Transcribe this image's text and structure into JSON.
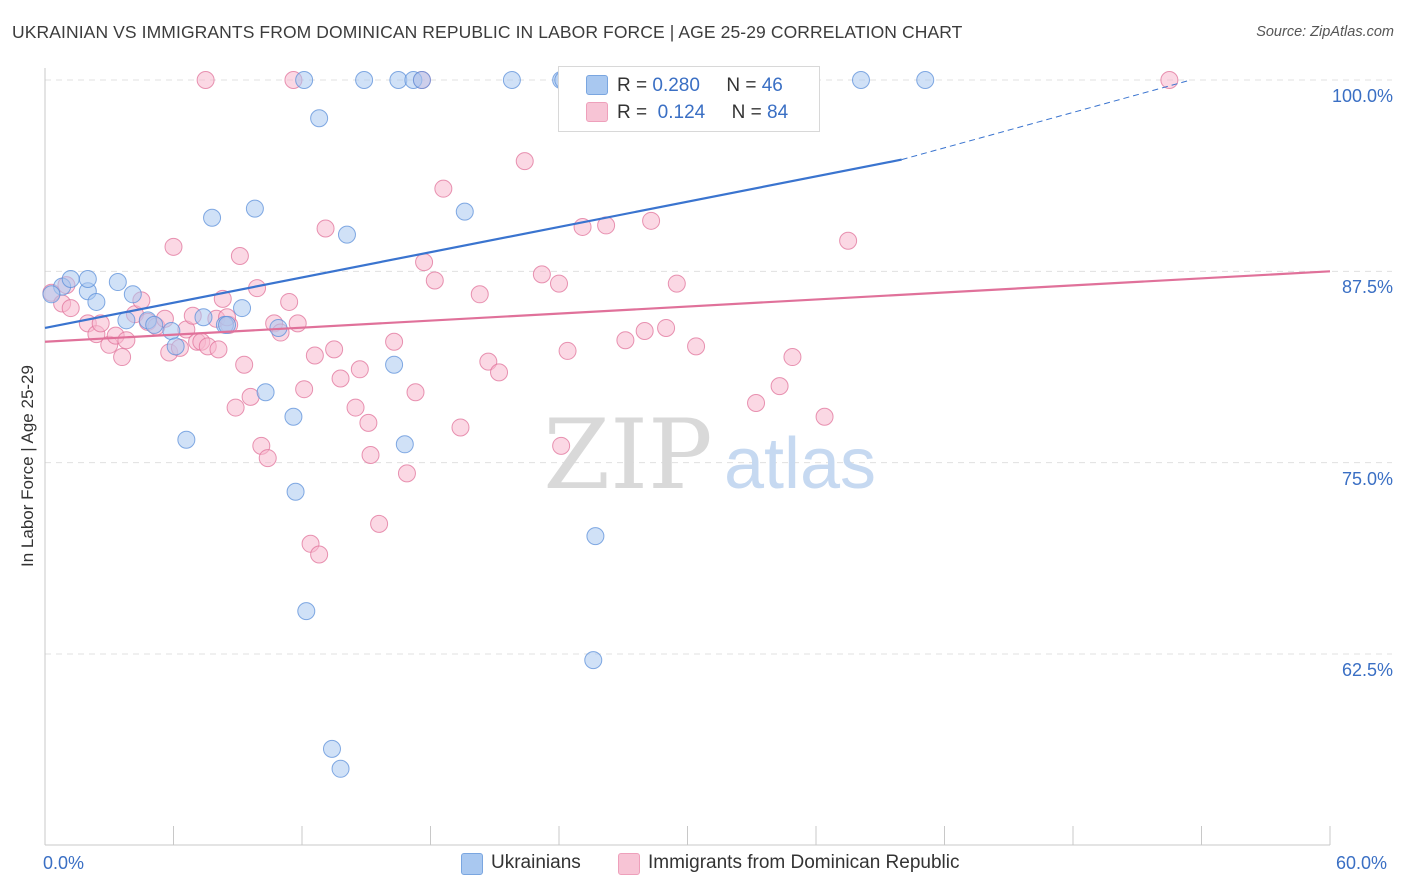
{
  "title": "UKRAINIAN VS IMMIGRANTS FROM DOMINICAN REPUBLIC IN LABOR FORCE | AGE 25-29 CORRELATION CHART",
  "source": "Source: ZipAtlas.com",
  "watermark": "ZIPatlas",
  "legend": {
    "r_label": "R =",
    "n_label": "N =",
    "items": [
      {
        "r": "0.280",
        "n": "46",
        "color": "#a9c8f0"
      },
      {
        "r": "0.124",
        "n": "84",
        "color": "#f7b8cd"
      }
    ]
  },
  "bottom_legend": [
    {
      "label": "Ukrainians",
      "color": "#a9c8f0"
    },
    {
      "label": "Immigrants from Dominican Republic",
      "color": "#f7b8cd"
    }
  ],
  "chart_data": {
    "type": "scatter",
    "title": "UKRAINIAN VS IMMIGRANTS FROM DOMINICAN REPUBLIC IN LABOR FORCE | AGE 25-29 CORRELATION CHART",
    "xlabel": "",
    "ylabel": "In Labor Force | Age 25-29",
    "xlim": [
      0,
      60
    ],
    "ylim": [
      50,
      100
    ],
    "x_tick_labels": [
      "0.0%",
      "60.0%"
    ],
    "y_ticks": [
      62.5,
      75.0,
      87.5,
      100.0
    ],
    "y_tick_labels": [
      "62.5%",
      "75.0%",
      "87.5%",
      "100.0%"
    ],
    "grid": true,
    "series": [
      {
        "name": "Ukrainians",
        "color": "#5b8fd9",
        "fill": "#a9c8f0",
        "r": 0.28,
        "n": 46,
        "trend": {
          "x": [
            0,
            40
          ],
          "y": [
            83.8,
            94.8
          ],
          "dashed_to": [
            53.5,
            100.0
          ]
        },
        "points": [
          [
            0.8,
            86.5
          ],
          [
            1.2,
            87.0
          ],
          [
            2.0,
            86.2
          ],
          [
            3.4,
            86.8
          ],
          [
            2.4,
            85.5
          ],
          [
            3.8,
            84.3
          ],
          [
            4.8,
            84.3
          ],
          [
            5.1,
            84.0
          ],
          [
            5.9,
            83.6
          ],
          [
            6.1,
            82.6
          ],
          [
            6.6,
            76.5
          ],
          [
            7.4,
            84.5
          ],
          [
            7.8,
            91.0
          ],
          [
            8.4,
            84.0
          ],
          [
            8.5,
            84.0
          ],
          [
            9.2,
            85.1
          ],
          [
            9.8,
            91.6
          ],
          [
            10.3,
            79.6
          ],
          [
            10.9,
            83.8
          ],
          [
            11.6,
            78.0
          ],
          [
            11.7,
            73.1
          ],
          [
            12.2,
            65.3
          ],
          [
            12.8,
            97.5
          ],
          [
            13.4,
            56.3
          ],
          [
            13.8,
            55.0
          ],
          [
            14.1,
            89.9
          ],
          [
            16.3,
            81.4
          ],
          [
            16.8,
            76.2
          ],
          [
            19.6,
            91.4
          ],
          [
            25.7,
            70.2
          ],
          [
            25.6,
            62.1
          ],
          [
            12.1,
            100.0
          ],
          [
            14.9,
            100.0
          ],
          [
            16.5,
            100.0
          ],
          [
            17.2,
            100.0
          ],
          [
            17.6,
            100.0
          ],
          [
            21.8,
            100.0
          ],
          [
            24.1,
            100.0
          ],
          [
            24.2,
            100.0
          ],
          [
            31.5,
            100.0
          ],
          [
            33.6,
            100.0
          ],
          [
            38.1,
            100.0
          ],
          [
            41.1,
            100.0
          ],
          [
            4.1,
            86.0
          ],
          [
            2.0,
            87.0
          ],
          [
            0.3,
            86.0
          ]
        ]
      },
      {
        "name": "Immigrants from Dominican Republic",
        "color": "#e0719a",
        "fill": "#f7b8cd",
        "r": 0.124,
        "n": 84,
        "trend": {
          "x": [
            0,
            60
          ],
          "y": [
            82.9,
            87.5
          ]
        },
        "points": [
          [
            0.3,
            86.1
          ],
          [
            0.8,
            85.4
          ],
          [
            1.2,
            85.1
          ],
          [
            2.0,
            84.1
          ],
          [
            2.4,
            83.4
          ],
          [
            2.6,
            84.1
          ],
          [
            3.0,
            82.7
          ],
          [
            3.3,
            83.3
          ],
          [
            3.6,
            81.9
          ],
          [
            3.8,
            83.0
          ],
          [
            4.2,
            84.7
          ],
          [
            4.5,
            85.6
          ],
          [
            4.8,
            84.2
          ],
          [
            5.2,
            83.9
          ],
          [
            5.6,
            84.4
          ],
          [
            5.8,
            82.2
          ],
          [
            6.0,
            89.1
          ],
          [
            6.3,
            82.5
          ],
          [
            6.6,
            83.7
          ],
          [
            6.9,
            84.6
          ],
          [
            7.1,
            82.9
          ],
          [
            7.3,
            82.9
          ],
          [
            7.6,
            82.6
          ],
          [
            8.0,
            84.4
          ],
          [
            8.1,
            82.4
          ],
          [
            8.3,
            85.7
          ],
          [
            8.6,
            84.0
          ],
          [
            8.9,
            78.6
          ],
          [
            9.1,
            88.5
          ],
          [
            9.3,
            81.4
          ],
          [
            9.6,
            79.3
          ],
          [
            9.9,
            86.4
          ],
          [
            10.1,
            76.1
          ],
          [
            10.4,
            75.3
          ],
          [
            10.7,
            84.1
          ],
          [
            11.0,
            83.5
          ],
          [
            11.4,
            85.5
          ],
          [
            11.8,
            84.1
          ],
          [
            12.1,
            79.8
          ],
          [
            12.4,
            69.7
          ],
          [
            12.8,
            69.0
          ],
          [
            13.1,
            90.3
          ],
          [
            13.5,
            82.4
          ],
          [
            13.8,
            80.5
          ],
          [
            14.5,
            78.6
          ],
          [
            14.7,
            81.1
          ],
          [
            15.1,
            77.6
          ],
          [
            15.2,
            75.5
          ],
          [
            15.6,
            71.0
          ],
          [
            16.3,
            82.9
          ],
          [
            16.9,
            74.3
          ],
          [
            17.3,
            79.6
          ],
          [
            17.7,
            88.1
          ],
          [
            18.2,
            86.9
          ],
          [
            18.6,
            92.9
          ],
          [
            19.4,
            77.3
          ],
          [
            20.3,
            86.0
          ],
          [
            20.7,
            81.6
          ],
          [
            21.2,
            80.9
          ],
          [
            22.4,
            94.7
          ],
          [
            23.2,
            87.3
          ],
          [
            24.1,
            76.1
          ],
          [
            24.4,
            82.3
          ],
          [
            25.1,
            90.4
          ],
          [
            26.2,
            90.5
          ],
          [
            27.1,
            83.0
          ],
          [
            28.0,
            83.6
          ],
          [
            28.3,
            90.8
          ],
          [
            29.0,
            83.8
          ],
          [
            30.4,
            82.6
          ],
          [
            33.2,
            78.9
          ],
          [
            34.3,
            80.0
          ],
          [
            34.9,
            81.9
          ],
          [
            36.4,
            78.0
          ],
          [
            37.5,
            89.5
          ],
          [
            7.5,
            100.0
          ],
          [
            11.6,
            100.0
          ],
          [
            17.6,
            100.0
          ],
          [
            52.5,
            100.0
          ],
          [
            1.0,
            86.6
          ],
          [
            12.6,
            82.0
          ],
          [
            24.0,
            86.7
          ],
          [
            29.5,
            86.7
          ],
          [
            8.5,
            84.5
          ]
        ]
      }
    ]
  }
}
